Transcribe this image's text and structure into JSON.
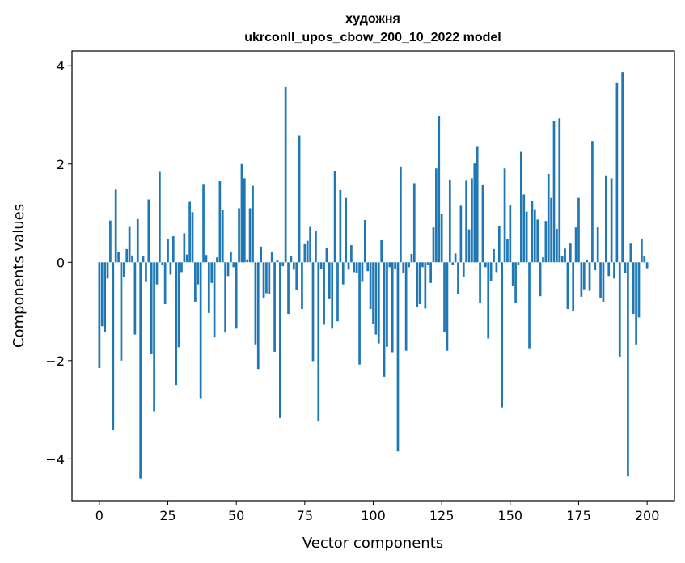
{
  "chart_data": {
    "type": "bar",
    "title": "художня",
    "subtitle": "ukrconll_upos_cbow_200_10_2022 model",
    "xlabel": "Vector components",
    "ylabel": "Components values",
    "xlim": [
      -10,
      210
    ],
    "ylim": [
      -4.85,
      4.3
    ],
    "xticks": [
      0,
      25,
      50,
      75,
      100,
      125,
      150,
      175,
      200
    ],
    "yticks": [
      -4,
      -2,
      0,
      2,
      4
    ],
    "ytick_labels": [
      "−4",
      "−2",
      "0",
      "2",
      "4"
    ],
    "grid": false,
    "bar_color": "#1f77b4",
    "series": [
      {
        "values": [
          -2.15,
          -1.3,
          -1.42,
          -0.33,
          0.85,
          -3.42,
          1.48,
          0.22,
          -2.0,
          -0.3,
          0.27,
          0.72,
          0.14,
          -1.47,
          0.88,
          -4.4,
          0.13,
          -0.4,
          1.28,
          -1.87,
          -3.03,
          -0.45,
          1.84,
          -0.05,
          -0.85,
          0.47,
          -0.25,
          0.53,
          -2.5,
          -1.73,
          -0.2,
          0.59,
          0.16,
          1.23,
          1.02,
          -0.8,
          -0.45,
          -2.77,
          1.58,
          0.15,
          -1.03,
          -0.42,
          -1.53,
          0.1,
          1.65,
          1.07,
          -1.43,
          -0.28,
          0.22,
          -0.1,
          -1.35,
          1.1,
          2.0,
          1.71,
          0.06,
          1.1,
          1.56,
          -1.67,
          -2.17,
          0.32,
          -0.73,
          -0.63,
          -0.65,
          0.2,
          -1.82,
          0.05,
          -3.17,
          -0.08,
          3.56,
          -1.05,
          0.12,
          -0.15,
          -0.56,
          2.58,
          -0.95,
          0.37,
          0.44,
          0.72,
          -2.01,
          0.64,
          -3.23,
          -0.13,
          -1.27,
          0.3,
          -0.75,
          -1.35,
          1.86,
          -1.2,
          1.47,
          -0.45,
          1.31,
          -0.15,
          0.35,
          -0.2,
          -0.22,
          -2.08,
          -0.4,
          0.86,
          -0.18,
          -0.95,
          -1.25,
          -1.47,
          -1.65,
          0.45,
          -2.33,
          -1.72,
          -0.1,
          -1.83,
          -0.13,
          -3.85,
          1.95,
          -0.22,
          -1.8,
          -0.1,
          0.17,
          1.61,
          -0.9,
          -0.85,
          -0.1,
          -0.94,
          -0.05,
          -0.42,
          0.71,
          1.91,
          2.97,
          0.99,
          -1.42,
          -1.8,
          1.67,
          -0.05,
          0.18,
          -0.65,
          1.15,
          -0.3,
          1.66,
          0.67,
          1.71,
          2.01,
          2.35,
          -0.82,
          1.57,
          -0.1,
          -1.55,
          -0.38,
          0.27,
          -0.2,
          0.73,
          -2.95,
          1.91,
          0.48,
          1.17,
          -0.48,
          -0.82,
          -0.06,
          2.25,
          1.38,
          1.03,
          -1.75,
          1.24,
          1.08,
          0.87,
          -0.69,
          0.1,
          0.84,
          1.8,
          1.31,
          2.88,
          0.68,
          2.93,
          0.12,
          0.28,
          -0.95,
          0.38,
          -1.0,
          0.71,
          1.31,
          -0.7,
          -0.55,
          0.05,
          -0.58,
          2.47,
          -0.16,
          0.71,
          -0.73,
          -0.8,
          1.77,
          -0.28,
          1.71,
          -0.33,
          3.66,
          -1.92,
          3.87,
          -0.22,
          -4.36,
          0.38,
          -1.05,
          -1.67,
          -1.12,
          0.48,
          0.13,
          -0.12
        ]
      }
    ]
  }
}
